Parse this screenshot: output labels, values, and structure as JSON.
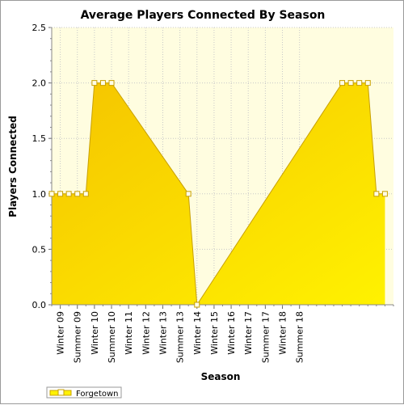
{
  "chart_data": {
    "type": "area",
    "title": "Average Players Connected By Season",
    "xlabel": "Season",
    "ylabel": "Players Connected",
    "ylim": [
      0,
      2.5
    ],
    "yticks": [
      "0.0",
      "0.5",
      "1.0",
      "1.5",
      "2.0",
      "2.5"
    ],
    "ytick_values": [
      0,
      0.5,
      1.0,
      1.5,
      2.0,
      2.5
    ],
    "xtick_labels": [
      "Winter 09",
      "Summer 09",
      "Winter 10",
      "Summer 10",
      "Winter 11",
      "Winter 12",
      "Winter 13",
      "Summer 13",
      "Winter 14",
      "Winter 15",
      "Winter 16",
      "Winter 17",
      "Summer 17",
      "Winter 18",
      "Summer 18"
    ],
    "grid": true,
    "legend_position": "bottom-left",
    "colors": {
      "plot_background": "#fffde0",
      "fill_light": "#fff200",
      "fill_dark": "#f5c400",
      "line": "#c8a000",
      "marker_fill": "#fffde8",
      "grid": "#c8c8c8"
    },
    "series": [
      {
        "name": "Forgetown",
        "points": [
          [
            0,
            1.0
          ],
          [
            0.5,
            1.0
          ],
          [
            1,
            1.0
          ],
          [
            1.5,
            1.0
          ],
          [
            2,
            1.0
          ],
          [
            2.5,
            2.0
          ],
          [
            3,
            2.0
          ],
          [
            3.5,
            2.0
          ],
          [
            8,
            1.0
          ],
          [
            8.5,
            0.0
          ],
          [
            17,
            2.0
          ],
          [
            17.5,
            2.0
          ],
          [
            18,
            2.0
          ],
          [
            18.5,
            2.0
          ],
          [
            19,
            1.0
          ],
          [
            19.5,
            1.0
          ]
        ]
      }
    ]
  }
}
